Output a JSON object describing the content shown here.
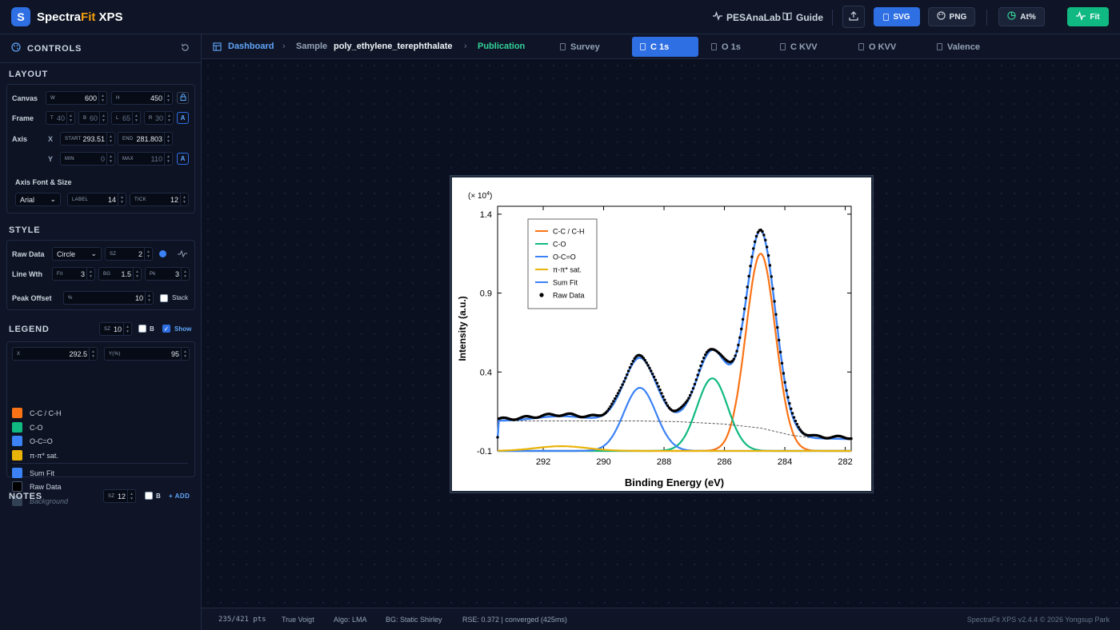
{
  "app": {
    "logo_letter": "S",
    "brand_main": "Spectra",
    "brand_fit": "Fit",
    "brand_suffix": "XPS"
  },
  "topbar": {
    "pesanalab": "PESAnaLab",
    "guide": "Guide",
    "svg": "SVG",
    "png": "PNG",
    "at_pct": "At%",
    "fit": "Fit"
  },
  "sidebar": {
    "controls": "CONTROLS",
    "layout": "LAYOUT",
    "canvas": {
      "label": "Canvas",
      "w_tag": "W",
      "w": "600",
      "h_tag": "H",
      "h": "450"
    },
    "frame": {
      "label": "Frame",
      "t_tag": "T",
      "t": "40",
      "b_tag": "B",
      "b": "60",
      "l_tag": "L",
      "l": "65",
      "r_tag": "R",
      "r": "30",
      "auto": "A"
    },
    "axis": {
      "label": "Axis",
      "x_label": "X",
      "y_label": "Y",
      "start_tag": "START",
      "start": "293.51",
      "end_tag": "END",
      "end": "281.803",
      "min_tag": "MIN",
      "min": "0",
      "max_tag": "MAX",
      "max": "110",
      "auto": "A"
    },
    "axis_font": {
      "label": "Axis Font & Size",
      "font": "Arial",
      "label_tag": "LABEL",
      "label_size": "14",
      "tick_tag": "TICK",
      "tick_size": "12"
    },
    "style": "STYLE",
    "raw_data": {
      "label": "Raw Data",
      "marker": "Circle",
      "sz_tag": "SZ",
      "sz": "2"
    },
    "line_width": {
      "label": "Line Wth",
      "fit_tag": "Fit",
      "fit": "3",
      "bg_tag": "BG",
      "bg": "1.5",
      "pk_tag": "Pk",
      "pk": "3"
    },
    "peak_offset": {
      "label": "Peak Offset",
      "pct_tag": "%",
      "value": "10",
      "stack": "Stack"
    },
    "legend": {
      "title": "LEGEND",
      "sz_tag": "SZ",
      "sz": "10",
      "bold": "B",
      "show": "Show",
      "x_tag": "X",
      "x": "292.5",
      "y_tag": "Y(%)",
      "y": "95",
      "items": [
        {
          "label": "C-C / C-H",
          "color": "#f97316"
        },
        {
          "label": "C-O",
          "color": "#10b981"
        },
        {
          "label": "O-C=O",
          "color": "#3b82f6"
        },
        {
          "label": "π-π* sat.",
          "color": "#eab308"
        },
        {
          "label": "Sum Fit",
          "color": "#3b82f6"
        },
        {
          "label": "Raw Data",
          "color": "#000000"
        },
        {
          "label": "Background",
          "color": "#334155"
        }
      ]
    },
    "notes": {
      "title": "NOTES",
      "sz_tag": "SZ",
      "sz": "12",
      "bold": "B",
      "add": "+ ADD"
    }
  },
  "tabsbar": {
    "dashboard": "Dashboard",
    "sample_label": "Sample",
    "sample_name": "poly_ethylene_terephthalate",
    "publication": "Publication",
    "tabs": [
      "Survey",
      "C 1s",
      "O 1s",
      "C KVV",
      "O KVV",
      "Valence"
    ]
  },
  "chart_data": {
    "type": "line",
    "title": "",
    "xlabel": "Binding Energy (eV)",
    "ylabel": "Intensity (a.u.)",
    "scale_note_prefix": "(× 10",
    "scale_note_exp": "4",
    "scale_note_suffix": ")",
    "xlim": [
      293.51,
      281.803
    ],
    "ylim": [
      -0.1,
      1.45
    ],
    "x_ticks": [
      "292",
      "290",
      "288",
      "286",
      "284",
      "282"
    ],
    "y_ticks": [
      "-0.1",
      "0.4",
      "0.9",
      "1.4"
    ],
    "legend_position": "top-left",
    "peaks": [
      {
        "name": "C-C / C-H",
        "center": 284.8,
        "height": 1.25,
        "fwhm": 1.15,
        "color": "#f97316"
      },
      {
        "name": "C-O",
        "center": 286.4,
        "height": 0.46,
        "fwhm": 1.2,
        "color": "#10b981"
      },
      {
        "name": "O-C=O",
        "center": 288.8,
        "height": 0.4,
        "fwhm": 1.25,
        "color": "#3b82f6"
      },
      {
        "name": "π-π* sat.",
        "center": 291.4,
        "height": 0.03,
        "fwhm": 2.0,
        "color": "#eab308"
      }
    ],
    "series": [
      {
        "name": "Sum Fit",
        "color": "#3b82f6"
      },
      {
        "name": "Raw Data",
        "color": "#000000"
      }
    ],
    "background_curve": {
      "x": [
        293.5,
        291.0,
        288.8,
        287.5,
        286.0,
        284.8,
        283.8,
        283.0,
        281.8
      ],
      "y": [
        0.09,
        0.09,
        0.09,
        0.085,
        0.07,
        0.045,
        0.0,
        -0.02,
        -0.025
      ]
    }
  },
  "statusbar": {
    "points": "235/421 pts",
    "profile": "True Voigt",
    "algo": "Algo: LMA",
    "bg": "BG: Static Shirley",
    "rse": "RSE: 0.372 | converged (425ms)",
    "version": "SpectraFit XPS v2.4.4 © 2026 Yongsup Park"
  }
}
